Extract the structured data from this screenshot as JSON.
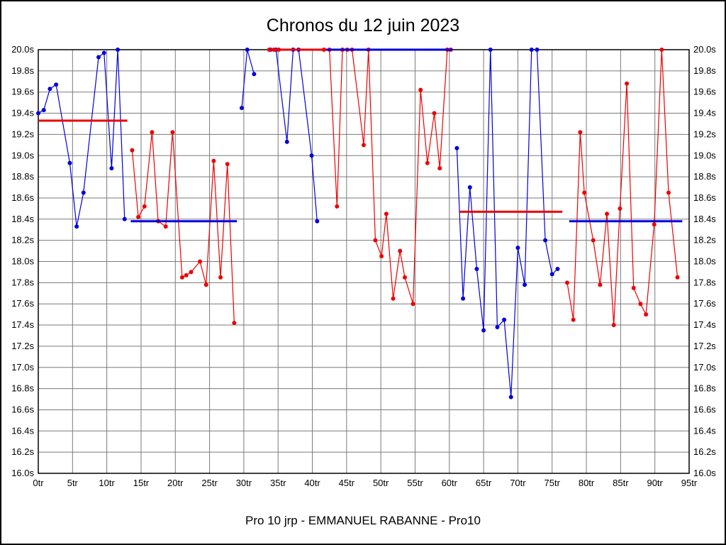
{
  "title": "Chronos du 12 juin 2023",
  "footer": "Pro 10 jrp - EMMANUEL RABANNE - Pro10",
  "colors": {
    "blue": "#0000dd",
    "red": "#ee0000",
    "grid": "#7a7a7a",
    "frame": "#000000",
    "background": "#ffffff"
  },
  "chart_data": {
    "type": "line",
    "title": "Chronos du 12 juin 2023",
    "subtitle": "Pro 10 jrp - EMMANUEL RABANNE - Pro10",
    "xlabel": "",
    "ylabel": "",
    "xlim": [
      0,
      95
    ],
    "ylim": [
      16.0,
      20.0
    ],
    "x_tick_step": 5,
    "y_tick_step": 0.2,
    "grid": true,
    "legend": "none",
    "x_tick_labels": [
      "0tr",
      "5tr",
      "10tr",
      "15tr",
      "20tr",
      "25tr",
      "30tr",
      "35tr",
      "40tr",
      "45tr",
      "50tr",
      "55tr",
      "60tr",
      "65tr",
      "70tr",
      "75tr",
      "80tr",
      "85tr",
      "90tr",
      "95tr"
    ],
    "y_tick_labels": [
      "16.0s",
      "16.2s",
      "16.4s",
      "16.6s",
      "16.8s",
      "17.0s",
      "17.2s",
      "17.4s",
      "17.6s",
      "17.8s",
      "18.0s",
      "18.2s",
      "18.4s",
      "18.6s",
      "18.8s",
      "19.0s",
      "19.2s",
      "19.4s",
      "19.6s",
      "19.8s",
      "20.0s"
    ],
    "series": [
      {
        "name": "blue-series",
        "color": "#0000dd",
        "segments": [
          [
            [
              0,
              19.4
            ],
            [
              0.8,
              19.43
            ],
            [
              1.7,
              19.63
            ],
            [
              2.6,
              19.67
            ],
            [
              4.6,
              18.93
            ],
            [
              5.6,
              18.33
            ],
            [
              6.6,
              18.65
            ],
            [
              8.8,
              19.93
            ],
            [
              9.6,
              19.97
            ],
            [
              10.7,
              18.88
            ],
            [
              11.6,
              20.0
            ],
            [
              12.6,
              18.4
            ]
          ],
          [
            [
              29.7,
              19.45
            ],
            [
              30.5,
              20.0
            ],
            [
              31.5,
              19.77
            ]
          ],
          [
            [
              33.9,
              20.0
            ],
            [
              34.7,
              20.0
            ],
            [
              36.3,
              19.13
            ],
            [
              37.2,
              20.0
            ],
            [
              38.0,
              20.0
            ],
            [
              39.9,
              19.0
            ],
            [
              40.7,
              18.38
            ]
          ],
          [
            [
              61.1,
              19.07
            ],
            [
              62.0,
              17.65
            ],
            [
              63.0,
              18.7
            ],
            [
              64.0,
              17.93
            ],
            [
              65.0,
              17.35
            ],
            [
              66.0,
              20.0
            ],
            [
              67.0,
              17.38
            ],
            [
              68.0,
              17.45
            ],
            [
              69.0,
              16.72
            ],
            [
              70.0,
              18.13
            ],
            [
              71.0,
              17.78
            ],
            [
              72.0,
              20.0
            ],
            [
              72.8,
              20.0
            ],
            [
              74.0,
              18.2
            ],
            [
              75.0,
              17.88
            ],
            [
              75.8,
              17.93
            ]
          ]
        ]
      },
      {
        "name": "red-series",
        "color": "#ee0000",
        "segments": [
          [
            [
              13.7,
              19.05
            ],
            [
              14.6,
              18.42
            ],
            [
              15.5,
              18.52
            ],
            [
              16.6,
              19.22
            ],
            [
              17.5,
              18.38
            ],
            [
              18.6,
              18.33
            ],
            [
              19.6,
              19.22
            ],
            [
              21.0,
              17.85
            ],
            [
              21.6,
              17.87
            ],
            [
              22.3,
              17.9
            ],
            [
              23.6,
              18.0
            ],
            [
              24.5,
              17.78
            ],
            [
              25.6,
              18.95
            ],
            [
              26.6,
              17.85
            ],
            [
              27.6,
              18.92
            ],
            [
              28.6,
              17.42
            ]
          ],
          [
            [
              33.7,
              20.0
            ],
            [
              34.4,
              20.0
            ],
            [
              35.1,
              20.0
            ]
          ],
          [
            [
              41.7,
              20.0
            ],
            [
              42.5,
              20.0
            ],
            [
              43.6,
              18.52
            ],
            [
              44.4,
              20.0
            ],
            [
              45.1,
              20.0
            ],
            [
              45.8,
              20.0
            ],
            [
              47.5,
              19.1
            ],
            [
              48.2,
              20.0
            ],
            [
              49.2,
              18.2
            ],
            [
              50.1,
              18.05
            ],
            [
              50.8,
              18.45
            ],
            [
              51.8,
              17.65
            ],
            [
              52.8,
              18.1
            ],
            [
              53.5,
              17.85
            ],
            [
              54.7,
              17.6
            ],
            [
              55.8,
              19.62
            ],
            [
              56.8,
              18.93
            ],
            [
              57.8,
              19.4
            ],
            [
              58.6,
              18.88
            ],
            [
              59.7,
              20.0
            ],
            [
              60.2,
              20.0
            ]
          ],
          [
            [
              77.2,
              17.8
            ],
            [
              78.1,
              17.45
            ],
            [
              79.1,
              19.22
            ],
            [
              79.7,
              18.65
            ],
            [
              81.0,
              18.2
            ],
            [
              82.0,
              17.78
            ],
            [
              83.0,
              18.45
            ],
            [
              84.0,
              17.4
            ],
            [
              84.9,
              18.5
            ],
            [
              85.9,
              19.68
            ],
            [
              86.9,
              17.75
            ],
            [
              87.9,
              17.6
            ],
            [
              88.7,
              17.5
            ],
            [
              89.9,
              18.35
            ],
            [
              91.0,
              20.0
            ],
            [
              92.0,
              18.65
            ],
            [
              93.3,
              17.85
            ]
          ]
        ]
      }
    ],
    "average_lines": [
      {
        "color": "#ee0000",
        "y": 19.33,
        "x1": 0,
        "x2": 13
      },
      {
        "color": "#0000dd",
        "y": 18.38,
        "x1": 13.5,
        "x2": 29
      },
      {
        "color": "#ee0000",
        "y": 20.0,
        "x1": 33.7,
        "x2": 42
      },
      {
        "color": "#0000dd",
        "y": 20.0,
        "x1": 42,
        "x2": 60.5
      },
      {
        "color": "#ee0000",
        "y": 18.47,
        "x1": 61.5,
        "x2": 76.5
      },
      {
        "color": "#0000dd",
        "y": 18.38,
        "x1": 77.5,
        "x2": 94
      }
    ]
  }
}
